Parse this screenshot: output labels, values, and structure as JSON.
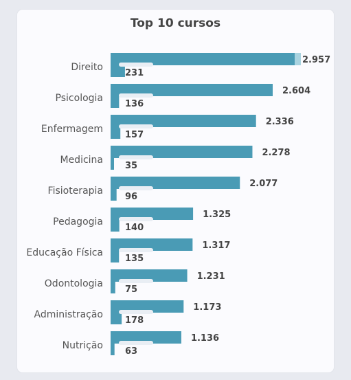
{
  "chart_data": {
    "type": "bar",
    "orientation": "horizontal",
    "title": "Top 10 cursos",
    "categories": [
      "Direito",
      "Psicologia",
      "Enfermagem",
      "Medicina",
      "Fisioterapia",
      "Pedagogia",
      "Educação Física",
      "Odontologia",
      "Administração",
      "Nutrição"
    ],
    "series": [
      {
        "values": [
          2957,
          2604,
          2336,
          2278,
          2077,
          1325,
          1317,
          1231,
          1173,
          1136
        ],
        "labels": [
          "2.957",
          "2.604",
          "2.336",
          "2.278",
          "2.077",
          "1.325",
          "1.317",
          "1.231",
          "1.173",
          "1.136"
        ]
      },
      {
        "values": [
          231,
          136,
          157,
          35,
          96,
          140,
          135,
          75,
          178,
          63
        ],
        "labels": [
          "231",
          "136",
          "157",
          "35",
          "96",
          "140",
          "135",
          "75",
          "178",
          "63"
        ]
      }
    ],
    "grid": false,
    "legend": "none",
    "colors": {
      "bar": "#4a9bb5",
      "highlight": "#a9d3e0",
      "label_bg": "#e9eef4"
    }
  }
}
